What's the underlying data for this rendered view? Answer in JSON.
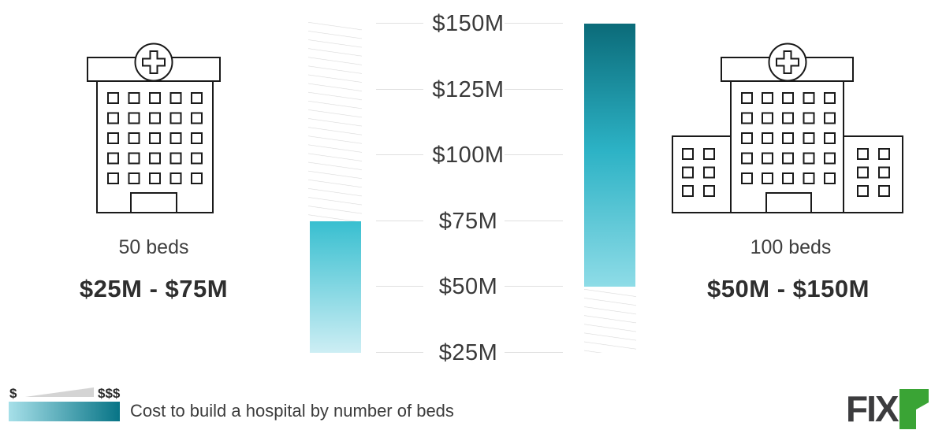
{
  "caption": "Cost to build a hospital by number of beds",
  "brand": {
    "text": "FIX",
    "accent_letter": "r"
  },
  "legend": {
    "low": "$",
    "high": "$$$"
  },
  "chart_data": {
    "type": "bar",
    "title": "Cost to build a hospital by number of beds",
    "unit": "million USD",
    "orientation": "vertical-range-bars",
    "axis": {
      "tick_labels": [
        "$150M",
        "$125M",
        "$100M",
        "$75M",
        "$50M",
        "$25M"
      ],
      "tick_values": [
        150,
        125,
        100,
        75,
        50,
        25
      ],
      "ylim": [
        25,
        150
      ],
      "grid": "short horizontal segments beside labels"
    },
    "series": [
      {
        "name": "50 beds",
        "min": 25,
        "max": 75,
        "range_label": "$25M - $75M"
      },
      {
        "name": "100 beds",
        "min": 50,
        "max": 150,
        "range_label": "$50M - $150M"
      }
    ]
  },
  "colors": {
    "bar_light_top": "#38bfd0",
    "bar_light_bottom": "#cdeef4",
    "bar_dark_top": "#0b6b79",
    "bar_dark_mid": "#2cb2c5",
    "bar_dark_bottom": "#8edce7",
    "legend_gradient_left": "#a7e0e9",
    "legend_gradient_right": "#077486",
    "hatch_line": "#d8d8d8",
    "grid_line": "#e0e0e0",
    "wedge_gray": "#d4d4d4",
    "line_art": "#1a1a1a",
    "brand_dark": "#3c3c3e",
    "brand_green": "#3aa435"
  }
}
